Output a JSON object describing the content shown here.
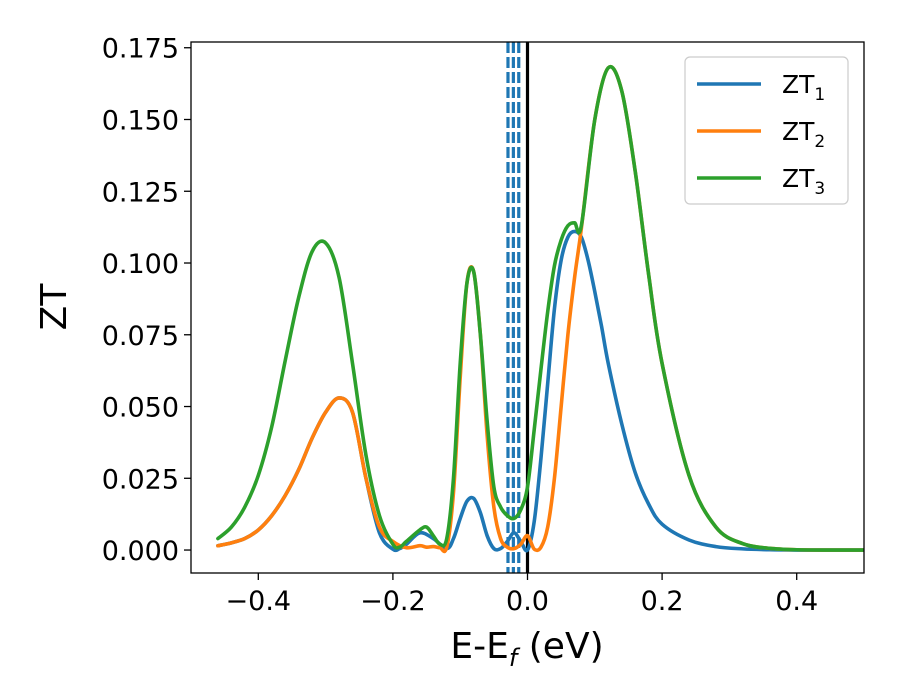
{
  "chart_data": {
    "type": "line",
    "xlabel": "E-E",
    "xlabel_sub": "f",
    "xlabel_unit": " (eV)",
    "ylabel": "ZT",
    "xlim": [
      -0.5,
      0.5
    ],
    "ylim": [
      -0.008,
      0.177
    ],
    "xticks": [
      -0.4,
      -0.2,
      0.0,
      0.2,
      0.4
    ],
    "xtick_labels": [
      "−0.4",
      "−0.2",
      "0.0",
      "0.2",
      "0.4"
    ],
    "yticks": [
      0.0,
      0.025,
      0.05,
      0.075,
      0.1,
      0.125,
      0.15,
      0.175
    ],
    "ytick_labels": [
      "0.000",
      "0.025",
      "0.050",
      "0.075",
      "0.100",
      "0.125",
      "0.150",
      "0.175"
    ],
    "grid": false,
    "legend_position": "top-right",
    "vertical_lines": [
      {
        "x": 0.0,
        "style": "solid",
        "color": "#000000"
      },
      {
        "x": -0.029,
        "style": "dashed",
        "color": "#1f77b4"
      },
      {
        "x": -0.021,
        "style": "dashed",
        "color": "#1f77b4"
      },
      {
        "x": -0.013,
        "style": "dashed",
        "color": "#1f77b4"
      }
    ],
    "series": [
      {
        "name": "ZT",
        "subscript": "1",
        "color": "#1f77b4",
        "x": [
          -0.46,
          -0.44,
          -0.42,
          -0.4,
          -0.38,
          -0.36,
          -0.34,
          -0.32,
          -0.3,
          -0.28,
          -0.26,
          -0.24,
          -0.22,
          -0.2,
          -0.19,
          -0.18,
          -0.16,
          -0.14,
          -0.12,
          -0.11,
          -0.1,
          -0.09,
          -0.08,
          -0.07,
          -0.06,
          -0.05,
          -0.04,
          -0.03,
          -0.02,
          -0.01,
          0.0,
          0.01,
          0.02,
          0.03,
          0.04,
          0.05,
          0.06,
          0.07,
          0.08,
          0.09,
          0.1,
          0.11,
          0.12,
          0.14,
          0.16,
          0.18,
          0.2,
          0.24,
          0.28,
          0.32,
          0.36,
          0.4,
          0.45,
          0.5
        ],
        "y": [
          0.0015,
          0.0025,
          0.004,
          0.007,
          0.012,
          0.019,
          0.028,
          0.039,
          0.048,
          0.053,
          0.048,
          0.025,
          0.006,
          0.0003,
          0.0005,
          0.002,
          0.006,
          0.004,
          0.0005,
          0.004,
          0.011,
          0.017,
          0.018,
          0.013,
          0.005,
          0.0005,
          0.0005,
          0.003,
          0.006,
          0.003,
          0.0,
          0.01,
          0.032,
          0.058,
          0.084,
          0.101,
          0.109,
          0.111,
          0.109,
          0.101,
          0.09,
          0.078,
          0.065,
          0.044,
          0.027,
          0.016,
          0.009,
          0.0035,
          0.0012,
          0.0004,
          0.0001,
          0.0,
          0.0,
          0.0
        ]
      },
      {
        "name": "ZT",
        "subscript": "2",
        "color": "#ff7f0e",
        "x": [
          -0.46,
          -0.44,
          -0.42,
          -0.4,
          -0.38,
          -0.36,
          -0.34,
          -0.32,
          -0.3,
          -0.28,
          -0.26,
          -0.24,
          -0.22,
          -0.2,
          -0.18,
          -0.16,
          -0.15,
          -0.14,
          -0.13,
          -0.12,
          -0.11,
          -0.1,
          -0.09,
          -0.08,
          -0.07,
          -0.06,
          -0.05,
          -0.04,
          -0.03,
          -0.02,
          -0.01,
          0.0,
          0.01,
          0.02,
          0.03,
          0.04,
          0.05,
          0.06,
          0.07,
          0.08,
          0.1,
          0.12,
          0.14,
          0.16,
          0.18,
          0.2,
          0.24,
          0.28,
          0.32,
          0.36,
          0.4,
          0.45,
          0.5
        ],
        "y": [
          0.0015,
          0.0025,
          0.004,
          0.007,
          0.012,
          0.019,
          0.028,
          0.039,
          0.048,
          0.053,
          0.048,
          0.025,
          0.008,
          0.003,
          0.0008,
          0.0015,
          0.001,
          0.0012,
          0.0008,
          0.001,
          0.02,
          0.06,
          0.093,
          0.097,
          0.075,
          0.04,
          0.015,
          0.004,
          0.001,
          0.0005,
          0.002,
          0.005,
          0.0003,
          0.001,
          0.008,
          0.025,
          0.05,
          0.075,
          0.095,
          0.112,
          0.15,
          0.168,
          0.16,
          0.132,
          0.096,
          0.065,
          0.026,
          0.008,
          0.0022,
          0.0006,
          0.0001,
          0.0,
          0.0
        ]
      },
      {
        "name": "ZT",
        "subscript": "3",
        "color": "#2ca02c",
        "x": [
          -0.46,
          -0.44,
          -0.42,
          -0.4,
          -0.38,
          -0.36,
          -0.34,
          -0.32,
          -0.3,
          -0.28,
          -0.26,
          -0.24,
          -0.22,
          -0.2,
          -0.19,
          -0.18,
          -0.16,
          -0.15,
          -0.14,
          -0.13,
          -0.12,
          -0.11,
          -0.1,
          -0.09,
          -0.08,
          -0.07,
          -0.06,
          -0.05,
          -0.04,
          -0.03,
          -0.02,
          -0.01,
          0.0,
          0.01,
          0.02,
          0.03,
          0.04,
          0.05,
          0.06,
          0.07,
          0.08,
          0.1,
          0.12,
          0.14,
          0.16,
          0.18,
          0.2,
          0.24,
          0.28,
          0.32,
          0.36,
          0.4,
          0.45,
          0.5
        ],
        "y": [
          0.004,
          0.008,
          0.015,
          0.026,
          0.043,
          0.066,
          0.088,
          0.104,
          0.107,
          0.095,
          0.065,
          0.033,
          0.012,
          0.002,
          0.001,
          0.003,
          0.007,
          0.008,
          0.005,
          0.002,
          0.004,
          0.025,
          0.065,
          0.093,
          0.097,
          0.075,
          0.045,
          0.022,
          0.015,
          0.012,
          0.011,
          0.014,
          0.022,
          0.042,
          0.063,
          0.083,
          0.099,
          0.108,
          0.113,
          0.114,
          0.113,
          0.15,
          0.168,
          0.16,
          0.132,
          0.096,
          0.065,
          0.026,
          0.008,
          0.0022,
          0.0006,
          0.0001,
          0.0,
          0.0
        ]
      }
    ]
  }
}
